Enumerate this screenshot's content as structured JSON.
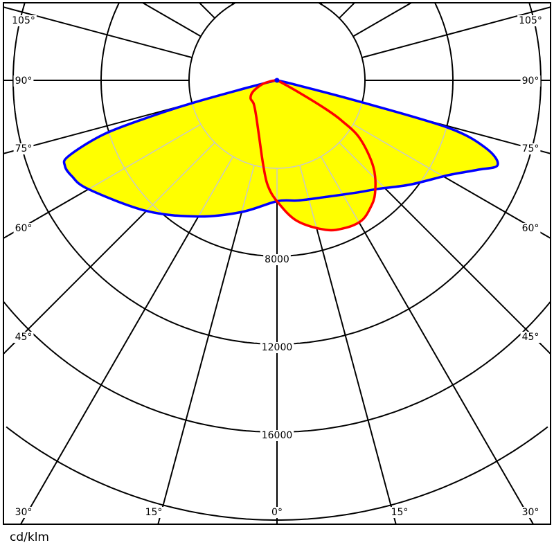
{
  "chart_data": {
    "type": "polar",
    "unit_label": "cd/klm",
    "radial_ticks": [
      4000,
      8000,
      12000,
      16000,
      20000
    ],
    "radial_tick_labels": [
      "8000",
      "12000",
      "16000"
    ],
    "angle_step_deg": 15,
    "angle_labels": {
      "left": [
        "105°",
        "90°",
        "75°",
        "60°",
        "45°",
        "30°"
      ],
      "bottom": [
        "15°",
        "0°",
        "15°",
        "30°"
      ],
      "right": [
        "30°",
        "45°",
        "60°",
        "75°",
        "90°",
        "105°"
      ]
    },
    "grid": true,
    "fill_color": "#ffff00",
    "series": [
      {
        "color": "#0000ff",
        "left": [
          [
            0,
            5500
          ],
          [
            15,
            6200
          ],
          [
            30,
            7150
          ],
          [
            45,
            8400
          ],
          [
            60,
            9900
          ],
          [
            65,
            10300
          ],
          [
            68,
            10400
          ],
          [
            70,
            10100
          ],
          [
            72.7,
            8250
          ],
          [
            74,
            6000
          ],
          [
            75,
            4000
          ],
          [
            76,
            1500
          ],
          [
            78,
            300
          ],
          [
            90,
            0
          ]
        ],
        "right": [
          [
            0,
            5500
          ],
          [
            10,
            5550
          ],
          [
            22,
            5730
          ],
          [
            35,
            6240
          ],
          [
            43,
            6750
          ],
          [
            52,
            7700
          ],
          [
            61,
            8900
          ],
          [
            66,
            10000
          ],
          [
            69,
            10750
          ],
          [
            72,
            10000
          ],
          [
            74.5,
            8100
          ],
          [
            75.5,
            4000
          ],
          [
            76.5,
            1000
          ],
          [
            80,
            0
          ],
          [
            90,
            0
          ]
        ]
      },
      {
        "color": "#ff0000",
        "left": [
          [
            0,
            5500
          ],
          [
            5,
            4800
          ],
          [
            9,
            3950
          ],
          [
            17,
            2750
          ],
          [
            31,
            1850
          ],
          [
            45,
            1500
          ],
          [
            56,
            1450
          ],
          [
            65,
            1200
          ],
          [
            75,
            700
          ],
          [
            82,
            300
          ],
          [
            90,
            0
          ]
        ],
        "right": [
          [
            0,
            5500
          ],
          [
            8,
            6450
          ],
          [
            18,
            7150
          ],
          [
            25,
            7400
          ],
          [
            31,
            7450
          ],
          [
            36,
            7200
          ],
          [
            41,
            6800
          ],
          [
            48,
            5900
          ],
          [
            55,
            4600
          ],
          [
            58,
            3500
          ],
          [
            59.5,
            2600
          ],
          [
            61,
            1200
          ],
          [
            63,
            300
          ],
          [
            70,
            0
          ],
          [
            90,
            0
          ]
        ]
      }
    ]
  }
}
